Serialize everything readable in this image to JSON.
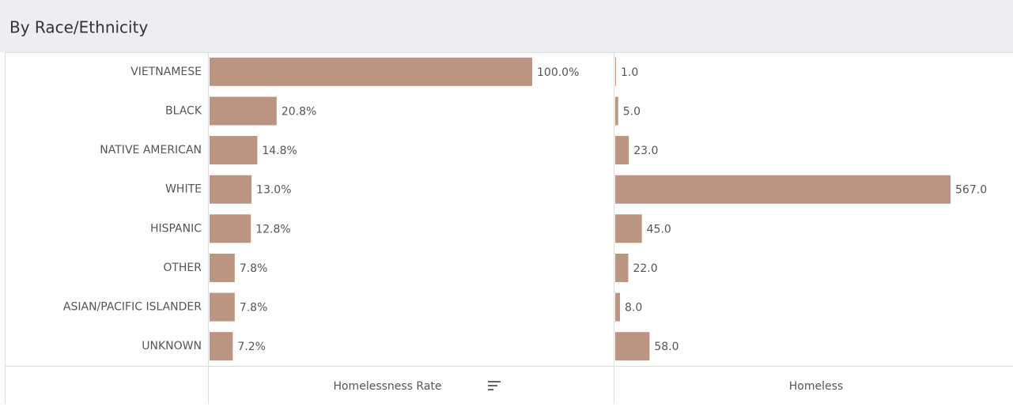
{
  "header": {
    "title": "By Race/Ethnicity"
  },
  "chart_data": [
    {
      "type": "bar",
      "title": "Homelessness Rate",
      "color": "#bc9581",
      "categories": [
        "VIETNAMESE",
        "BLACK",
        "NATIVE AMERICAN",
        "WHITE",
        "HISPANIC",
        "OTHER",
        "ASIAN/PACIFIC ISLANDER",
        "UNKNOWN"
      ],
      "values": [
        100,
        20.8,
        14.8,
        13,
        12.8,
        7.8,
        7.8,
        7.2
      ],
      "value_labels": [
        "100.0%",
        "20.8%",
        "14.8%",
        "13.0%",
        "12.8%",
        "7.8%",
        "7.8%",
        "7.2%"
      ]
    },
    {
      "type": "bar",
      "title": "Homeless",
      "color": "#bc9581",
      "values": [
        1,
        5,
        23,
        567,
        45,
        22,
        8,
        58
      ],
      "value_labels": [
        "1.0",
        "5.0",
        "23.0",
        "567.0",
        "45.0",
        "22.0",
        "8.0",
        "58.0"
      ]
    }
  ]
}
